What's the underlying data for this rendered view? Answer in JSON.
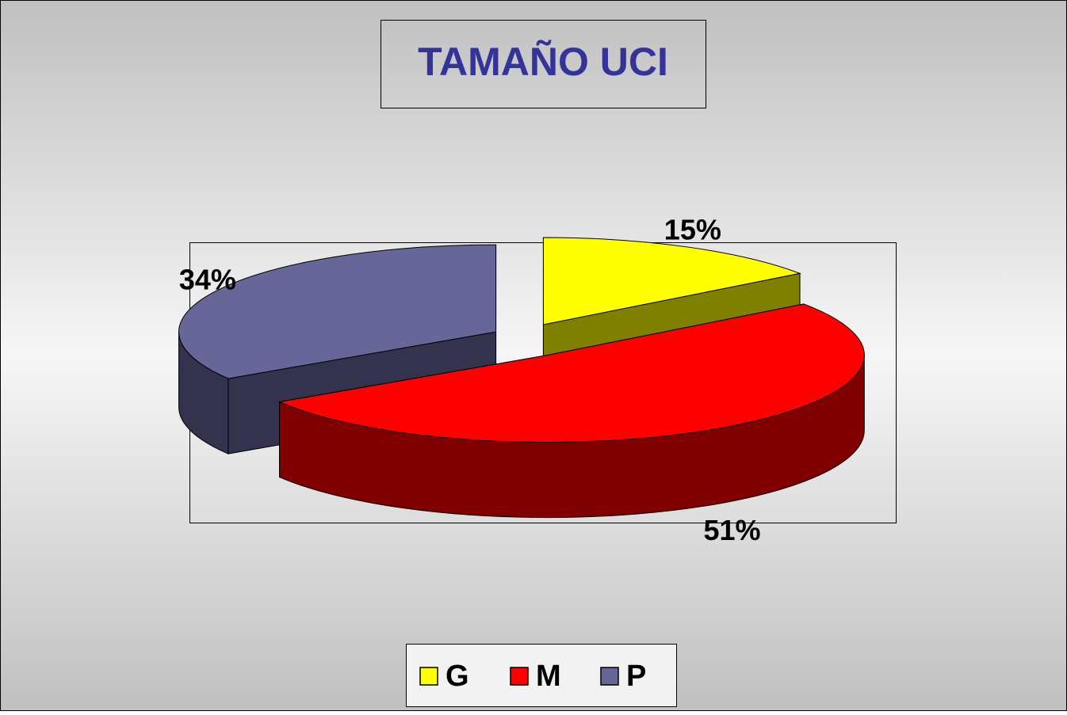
{
  "chart_data": {
    "type": "pie",
    "title": "TAMAÑO UCI",
    "categories": [
      "G",
      "M",
      "P"
    ],
    "values": [
      15,
      51,
      34
    ],
    "value_labels": [
      "15%",
      "51%",
      "34%"
    ],
    "colors": [
      "#ffff00",
      "#ff0000",
      "#666699"
    ],
    "legend": "bottom"
  }
}
